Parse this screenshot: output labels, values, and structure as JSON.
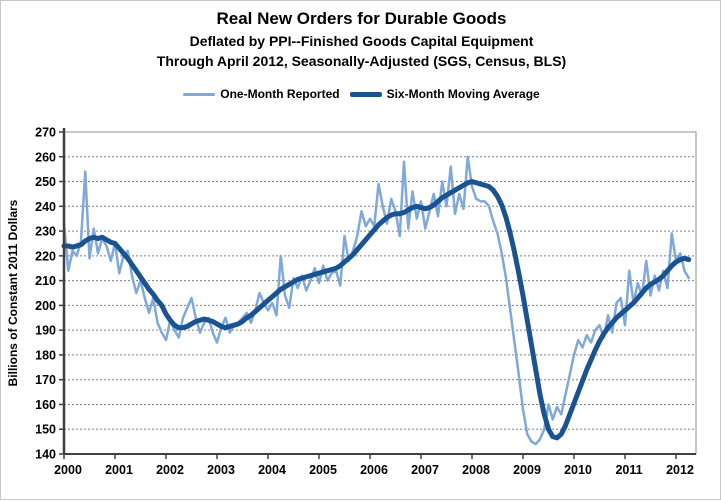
{
  "header": {
    "title": "Real New Orders for Durable Goods",
    "subtitle1": "Deflated by PPI--Finished Goods Capital Equipment",
    "subtitle2": "Through April 2012, Seasonally-Adjusted  (SGS, Census, BLS)"
  },
  "legend": {
    "items": [
      {
        "label": "One-Month Reported",
        "color": "#7FA8DC",
        "thickness": 3
      },
      {
        "label": "Six-Month Moving Average",
        "color": "#1B5392",
        "thickness": 5
      }
    ]
  },
  "chart_data": {
    "type": "line",
    "title": "Real New Orders for Durable Goods",
    "subtitle": "Deflated by PPI--Finished Goods Capital Equipment; Through April 2012, Seasonally-Adjusted (SGS, Census, BLS)",
    "xlabel": "",
    "ylabel": "Billions of Constant 2011 Dollars",
    "x_start": "2000-01",
    "x_end": "2012-04",
    "frequency": "monthly",
    "y_axis": {
      "min": 140,
      "max": 270,
      "step": 10,
      "grid": true
    },
    "x_tick_years": [
      2000,
      2001,
      2002,
      2003,
      2004,
      2005,
      2006,
      2007,
      2008,
      2009,
      2010,
      2011,
      2012
    ],
    "legend_position": "top",
    "series": [
      {
        "name": "One-Month Reported",
        "color": "#7FA8DC",
        "width": 2.5,
        "values": [
          233,
          214,
          222,
          220,
          226,
          254,
          219,
          231,
          221,
          227,
          224,
          218,
          225,
          213,
          220,
          222,
          212,
          205,
          210,
          203,
          197,
          203,
          193,
          189,
          186,
          194,
          190,
          187,
          195,
          199,
          203,
          195,
          189,
          193,
          195,
          189,
          185,
          191,
          195,
          189,
          192,
          193,
          195,
          197,
          193,
          198,
          205,
          201,
          198,
          201,
          196,
          220,
          204,
          199,
          211,
          207,
          212,
          206,
          210,
          215,
          209,
          216,
          210,
          213,
          214,
          208,
          228,
          218,
          222,
          228,
          238,
          232,
          235,
          232,
          249,
          240,
          233,
          243,
          238,
          228,
          258,
          231,
          246,
          235,
          242,
          231,
          238,
          245,
          236,
          250,
          240,
          256,
          237,
          245,
          239,
          260,
          248,
          243,
          242,
          242,
          240,
          234,
          229,
          221,
          211,
          198,
          185,
          172,
          158,
          148,
          145,
          144,
          146,
          150,
          160,
          154,
          159,
          156,
          164,
          172,
          180,
          186,
          183,
          188,
          185,
          190,
          192,
          187,
          196,
          189,
          201,
          203,
          192,
          214,
          201,
          209,
          204,
          218,
          204,
          212,
          206,
          214,
          207,
          229,
          218,
          221,
          214,
          211
        ]
      },
      {
        "name": "Six-Month Moving Average",
        "color": "#1B5392",
        "width": 5,
        "values": [
          224,
          224,
          223.5,
          224,
          224.5,
          226,
          227,
          227.5,
          227,
          227.5,
          226.5,
          225.5,
          225,
          223,
          221,
          219,
          216.5,
          214,
          211.5,
          209,
          206.5,
          204.5,
          202,
          200,
          196.5,
          194,
          192,
          191,
          191,
          191.5,
          192.5,
          193.5,
          194,
          194.5,
          194,
          193.5,
          192.5,
          191.5,
          191,
          191.5,
          192,
          192.5,
          193.5,
          195,
          196,
          197.5,
          199,
          200.5,
          202,
          203.5,
          205,
          206.5,
          207.5,
          208.5,
          209.5,
          210.5,
          211,
          211.5,
          212,
          212.5,
          213,
          213.5,
          214,
          214.5,
          215,
          216,
          217.5,
          219,
          220.5,
          222.5,
          224.5,
          226.5,
          228.5,
          230.5,
          232.5,
          234,
          235.5,
          236.5,
          237,
          237,
          237.5,
          238.5,
          239.5,
          240,
          239.5,
          239,
          239.5,
          240.5,
          242,
          243.5,
          244.5,
          245.5,
          246.5,
          247.5,
          248.5,
          249.5,
          250,
          249.5,
          249,
          248.5,
          248,
          246.5,
          244,
          240.5,
          235.5,
          229,
          221.5,
          213,
          204,
          194,
          184,
          174,
          164,
          156,
          150,
          147,
          146.5,
          148,
          151.5,
          156,
          160.5,
          165,
          169.5,
          174,
          178,
          182,
          185.5,
          188.5,
          191,
          193,
          195,
          196.5,
          198,
          199.5,
          201,
          203,
          205,
          207,
          208.5,
          209.5,
          210.5,
          212,
          214,
          216,
          217.5,
          218.5,
          219,
          218.5
        ]
      }
    ]
  },
  "colors": {
    "axis": "#404040",
    "gridline": "#808080",
    "frame": "#909090",
    "background": "#ffffff"
  }
}
